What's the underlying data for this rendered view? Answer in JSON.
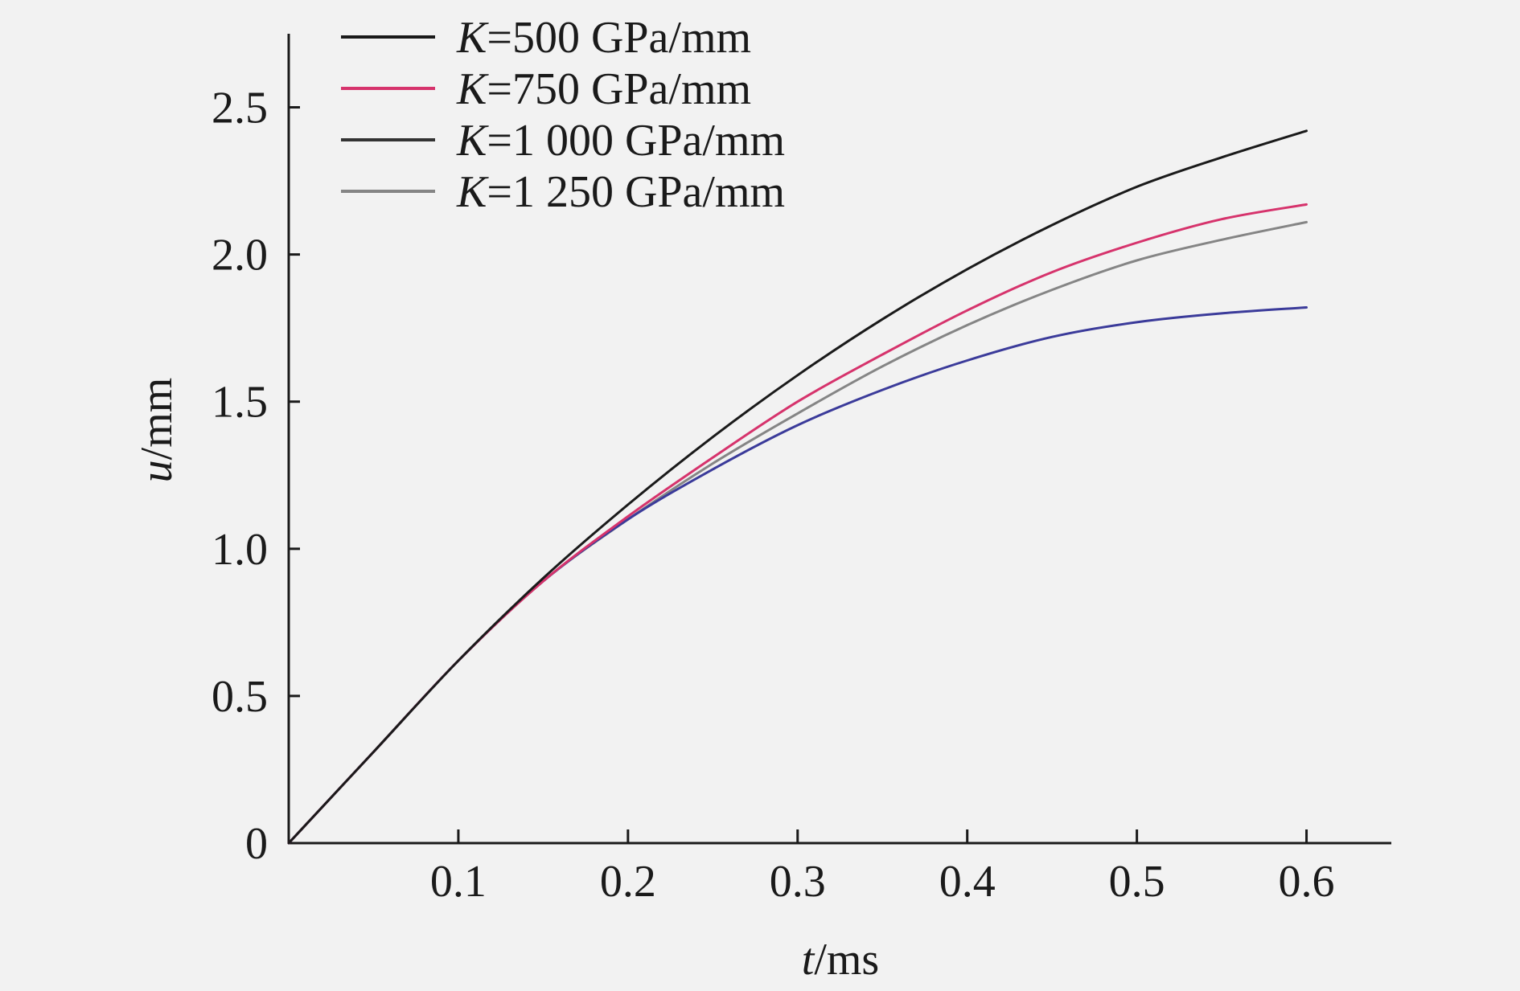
{
  "chart_data": {
    "type": "line",
    "xlabel": {
      "var": "t",
      "unit": "/ms"
    },
    "ylabel": {
      "var": "u",
      "unit": "/mm"
    },
    "xlim": [
      0,
      0.65
    ],
    "ylim": [
      0,
      2.75
    ],
    "xticks": [
      0.1,
      0.2,
      0.3,
      0.4,
      0.5,
      0.6
    ],
    "xtick_labels": [
      "0.1",
      "0.2",
      "0.3",
      "0.4",
      "0.5",
      "0.6"
    ],
    "yticks": [
      0,
      0.5,
      1.0,
      1.5,
      2.0,
      2.5
    ],
    "ytick_labels": [
      "0",
      "0.5",
      "1.0",
      "1.5",
      "2.0",
      "2.5"
    ],
    "grid": false,
    "legend_position": "top-left",
    "x": [
      0,
      0.05,
      0.1,
      0.15,
      0.2,
      0.25,
      0.3,
      0.35,
      0.4,
      0.45,
      0.5,
      0.55,
      0.6
    ],
    "series": [
      {
        "name": "K=500 GPa/mm",
        "legend": {
          "italic": "K",
          "rest": "=500 GPa/mm"
        },
        "color": "#1a1a1a",
        "values": [
          0,
          0.31,
          0.62,
          0.9,
          1.15,
          1.38,
          1.59,
          1.78,
          1.95,
          2.1,
          2.23,
          2.33,
          2.42
        ]
      },
      {
        "name": "K=750 GPa/mm",
        "legend": {
          "italic": "K",
          "rest": "=750 GPa/mm"
        },
        "color": "#d6336c",
        "values": [
          0,
          0.31,
          0.62,
          0.89,
          1.11,
          1.31,
          1.5,
          1.66,
          1.81,
          1.94,
          2.04,
          2.12,
          2.17
        ]
      },
      {
        "name": "K=1 000 GPa/mm",
        "legend": {
          "italic": "K",
          "rest": "=1 000 GPa/mm"
        },
        "color": "#3b3b9a",
        "legend_color": "#333333",
        "values": [
          0,
          0.31,
          0.62,
          0.89,
          1.1,
          1.27,
          1.42,
          1.54,
          1.64,
          1.72,
          1.77,
          1.8,
          1.82
        ]
      },
      {
        "name": "K=1 250 GPa/mm",
        "legend": {
          "italic": "K",
          "rest": "=1 250 GPa/mm"
        },
        "color": "#858585",
        "values": [
          0,
          0.31,
          0.62,
          0.89,
          1.1,
          1.29,
          1.46,
          1.62,
          1.76,
          1.88,
          1.98,
          2.05,
          2.11
        ]
      }
    ]
  }
}
